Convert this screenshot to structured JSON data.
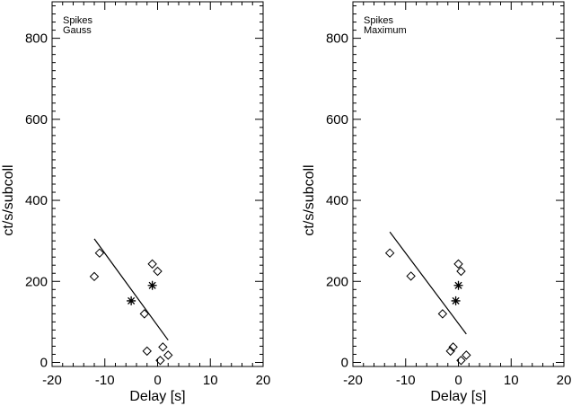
{
  "chart_data": [
    {
      "type": "scatter",
      "xlabel": "Delay [s]",
      "ylabel": "ct/s/subcoll",
      "xlim": [
        -20,
        20
      ],
      "ylim": [
        -10,
        890
      ],
      "xticks": [
        -20,
        -10,
        0,
        10,
        20
      ],
      "yticks": [
        0,
        200,
        400,
        600,
        800
      ],
      "grid": false,
      "annotations": [
        "Spikes",
        "Gauss"
      ],
      "series": [
        {
          "marker": "diamond",
          "points": [
            [
              -12,
              212
            ],
            [
              -11,
              270
            ],
            [
              -2.5,
              120
            ],
            [
              -2,
              28
            ],
            [
              -1,
              243
            ],
            [
              0,
              225
            ],
            [
              0.5,
              5
            ],
            [
              1,
              38
            ],
            [
              2,
              18
            ]
          ]
        },
        {
          "marker": "asterisk",
          "points": [
            [
              -5,
              152
            ],
            [
              -1,
              190
            ]
          ]
        },
        {
          "type": "line",
          "points": [
            [
              -12,
              305
            ],
            [
              2,
              55
            ]
          ]
        }
      ]
    },
    {
      "type": "scatter",
      "xlabel": "Delay [s]",
      "ylabel": "ct/s/subcoll",
      "xlim": [
        -20,
        20
      ],
      "ylim": [
        -10,
        890
      ],
      "xticks": [
        -20,
        -10,
        0,
        10,
        20
      ],
      "yticks": [
        0,
        200,
        400,
        600,
        800
      ],
      "grid": false,
      "annotations": [
        "Spikes",
        "Maximum"
      ],
      "series": [
        {
          "marker": "diamond",
          "points": [
            [
              -13,
              270
            ],
            [
              -9,
              213
            ],
            [
              -3,
              120
            ],
            [
              -1.5,
              28
            ],
            [
              -1,
              38
            ],
            [
              0,
              243
            ],
            [
              0.5,
              225
            ],
            [
              0.5,
              5
            ],
            [
              1.5,
              18
            ]
          ]
        },
        {
          "marker": "asterisk",
          "points": [
            [
              -0.5,
              152
            ],
            [
              0,
              190
            ]
          ]
        },
        {
          "type": "line",
          "points": [
            [
              -13,
              322
            ],
            [
              1.5,
              70
            ]
          ]
        }
      ]
    }
  ]
}
